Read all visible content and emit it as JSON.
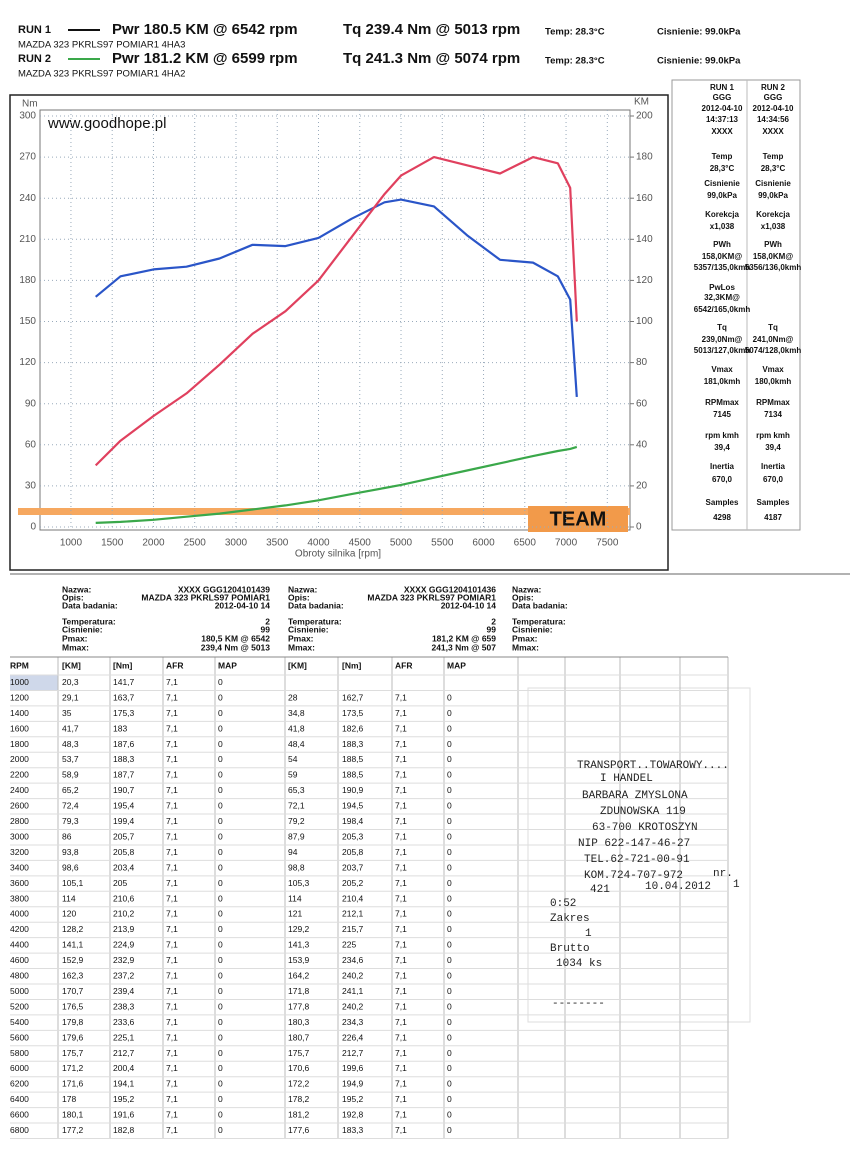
{
  "header": {
    "runs": [
      {
        "label": "RUN 1",
        "power": "Pwr 180.5 KM @ 6542 rpm",
        "torque": "Tq 239.4 Nm @ 5013 rpm",
        "temp": "Temp: 28.3°C",
        "pressure": "Cisnienie: 99.0kPa",
        "model": "MAZDA 323 PKRLS97 POMIAR1 4HA3"
      },
      {
        "label": "RUN 2",
        "power": "Pwr 181.2 KM @ 6599 rpm",
        "torque": "Tq 241.3 Nm @ 5074 rpm",
        "temp": "Temp: 28.3°C",
        "pressure": "Cisnienie: 99.0kPa",
        "model": "MAZDA 323 PKRLS97 POMIAR1 4HA2"
      }
    ]
  },
  "chart_data": {
    "type": "line",
    "ylabel": "Nm",
    "y2label": "KM",
    "xlabel": "Obroty silnika [rpm]",
    "watermark": "www.goodhope.pl",
    "logo": "TEAM",
    "x": [
      1300,
      1600,
      2000,
      2400,
      2800,
      3200,
      3600,
      4000,
      4400,
      4800,
      5000,
      5400,
      5800,
      6200,
      6600,
      6900,
      7050,
      7130
    ],
    "series": [
      {
        "color": "#2a55c8",
        "values": [
          168,
          183,
          188,
          190,
          196,
          206,
          205,
          211,
          225,
          237,
          239,
          234,
          213,
          195,
          193,
          183,
          166,
          95
        ]
      },
      {
        "color": "#e0405e",
        "axis": "y2",
        "values": [
          30,
          42,
          54,
          65,
          79,
          94,
          105,
          120,
          141,
          162,
          171,
          180,
          176,
          172,
          180,
          177,
          165,
          100
        ]
      },
      {
        "color": "#3aa84a",
        "axis": "y2",
        "values": [
          2,
          2.5,
          3.5,
          5,
          6.5,
          8.5,
          10.5,
          13,
          16,
          19,
          20.5,
          24,
          27.5,
          31,
          34.5,
          37,
          38,
          39
        ]
      }
    ],
    "xlim": [
      625,
      7775
    ],
    "xticks": [
      1000,
      1500,
      2000,
      2500,
      3000,
      3500,
      4000,
      4500,
      5000,
      5500,
      6000,
      6500,
      7000,
      7500
    ],
    "ylim": [
      0,
      300
    ],
    "yticks": [
      0,
      30,
      60,
      90,
      120,
      150,
      180,
      210,
      240,
      270,
      300
    ],
    "y2lim": [
      0,
      200
    ],
    "y2ticks": [
      0,
      20,
      40,
      60,
      80,
      100,
      120,
      140,
      160,
      180,
      200
    ],
    "grid": true
  },
  "side_panel": {
    "rows": [
      {
        "run1": "RUN 1",
        "run2": "RUN 2"
      },
      {
        "run1": "GGG",
        "run2": "GGG"
      },
      {
        "run1": "2012-04-10",
        "run2": "2012-04-10"
      },
      {
        "run1": "14:37:13",
        "run2": "14:34:56"
      },
      {
        "run1": "XXXX",
        "run2": "XXXX"
      },
      {
        "run1": "Temp",
        "run2": "Temp"
      },
      {
        "run1": "28,3°C",
        "run2": "28,3°C"
      },
      {
        "run1": "Cisnienie",
        "run2": "Cisnienie"
      },
      {
        "run1": "99,0kPa",
        "run2": "99,0kPa"
      },
      {
        "run1": "Korekcja",
        "run2": "Korekcja"
      },
      {
        "run1": "x1,038",
        "run2": "x1,038"
      },
      {
        "run1": "PWh",
        "run2": "PWh"
      },
      {
        "run1": "158,0KM@",
        "run2": "158,0KM@"
      },
      {
        "run1": "5357/135,0kmh",
        "run2": "5356/136,0kmh"
      },
      {
        "run1": "PwLos"
      },
      {
        "run1": "32,3KM@"
      },
      {
        "run1": "6542/165,0kmh"
      },
      {
        "run1": "Tq",
        "run2": "Tq"
      },
      {
        "run1": "239,0Nm@",
        "run2": "241,0Nm@"
      },
      {
        "run1": "5013/127,0kmh",
        "run2": "5074/128,0kmh"
      },
      {
        "run1": "Vmax",
        "run2": "Vmax"
      },
      {
        "run1": "181,0kmh",
        "run2": "180,0kmh"
      },
      {
        "run1": "RPMmax",
        "run2": "RPMmax"
      },
      {
        "run1": "7145",
        "run2": "7134"
      },
      {
        "run1": "rpm kmh",
        "run2": "rpm kmh"
      },
      {
        "run1": "39,4",
        "run2": "39,4"
      },
      {
        "run1": "Inertia",
        "run2": "Inertia"
      },
      {
        "run1": "670,0",
        "run2": "670,0"
      },
      {
        "run1": "Samples",
        "run2": "Samples"
      },
      {
        "run1": "4298",
        "run2": "4187"
      }
    ]
  },
  "info_blocks": [
    {
      "labels": [
        "Nazwa:",
        "Opis:",
        "Data badania:",
        "Temperatura:",
        "Cisnienie:",
        "Pmax:",
        "Mmax:"
      ],
      "values": [
        "XXXX  GGG1204101439",
        "MAZDA 323 PKRLS97 POMIAR1",
        "2012-04-10 14",
        "2",
        "99",
        "180,5 KM @ 6542",
        "239,4 Nm @ 5013"
      ]
    },
    {
      "labels": [
        "Nazwa:",
        "Opis:",
        "Data badania:",
        "Temperatura:",
        "Cisnienie:",
        "Pmax:",
        "Mmax:"
      ],
      "values": [
        "XXXX  GGG1204101436",
        "MAZDA 323 PKRLS97 POMIAR1",
        "2012-04-10 14",
        "2",
        "99",
        "181,2 KM @ 659",
        "241,3 Nm @ 507"
      ]
    },
    {
      "labels": [
        "Nazwa:",
        "Opis:",
        "Data badania:",
        "Temperatura:",
        "Cisnienie:",
        "Pmax:",
        "Mmax:"
      ]
    }
  ],
  "table": {
    "header": [
      "RPM",
      "[KM]",
      "[Nm]",
      "AFR",
      "MAP",
      "[KM]",
      "[Nm]",
      "AFR",
      "MAP"
    ],
    "rows": [
      [
        "1000",
        "20,3",
        "141,7",
        "7,1",
        "0"
      ],
      [
        "1200",
        "29,1",
        "163,7",
        "7,1",
        "0",
        "28",
        "162,7",
        "7,1",
        "0"
      ],
      [
        "1400",
        "35",
        "175,3",
        "7,1",
        "0",
        "34,8",
        "173,5",
        "7,1",
        "0"
      ],
      [
        "1600",
        "41,7",
        "183",
        "7,1",
        "0",
        "41,8",
        "182,6",
        "7,1",
        "0"
      ],
      [
        "1800",
        "48,3",
        "187,6",
        "7,1",
        "0",
        "48,4",
        "188,3",
        "7,1",
        "0"
      ],
      [
        "2000",
        "53,7",
        "188,3",
        "7,1",
        "0",
        "54",
        "188,5",
        "7,1",
        "0"
      ],
      [
        "2200",
        "58,9",
        "187,7",
        "7,1",
        "0",
        "59",
        "188,5",
        "7,1",
        "0"
      ],
      [
        "2400",
        "65,2",
        "190,7",
        "7,1",
        "0",
        "65,3",
        "190,9",
        "7,1",
        "0"
      ],
      [
        "2600",
        "72,4",
        "195,4",
        "7,1",
        "0",
        "72,1",
        "194,5",
        "7,1",
        "0"
      ],
      [
        "2800",
        "79,3",
        "199,4",
        "7,1",
        "0",
        "79,2",
        "198,4",
        "7,1",
        "0"
      ],
      [
        "3000",
        "86",
        "205,7",
        "7,1",
        "0",
        "87,9",
        "205,3",
        "7,1",
        "0"
      ],
      [
        "3200",
        "93,8",
        "205,8",
        "7,1",
        "0",
        "94",
        "205,8",
        "7,1",
        "0"
      ],
      [
        "3400",
        "98,6",
        "203,4",
        "7,1",
        "0",
        "98,8",
        "203,7",
        "7,1",
        "0"
      ],
      [
        "3600",
        "105,1",
        "205",
        "7,1",
        "0",
        "105,3",
        "205,2",
        "7,1",
        "0"
      ],
      [
        "3800",
        "114",
        "210,6",
        "7,1",
        "0",
        "114",
        "210,4",
        "7,1",
        "0"
      ],
      [
        "4000",
        "120",
        "210,2",
        "7,1",
        "0",
        "121",
        "212,1",
        "7,1",
        "0"
      ],
      [
        "4200",
        "128,2",
        "213,9",
        "7,1",
        "0",
        "129,2",
        "215,7",
        "7,1",
        "0"
      ],
      [
        "4400",
        "141,1",
        "224,9",
        "7,1",
        "0",
        "141,3",
        "225",
        "7,1",
        "0"
      ],
      [
        "4600",
        "152,9",
        "232,9",
        "7,1",
        "0",
        "153,9",
        "234,6",
        "7,1",
        "0"
      ],
      [
        "4800",
        "162,3",
        "237,2",
        "7,1",
        "0",
        "164,2",
        "240,2",
        "7,1",
        "0"
      ],
      [
        "5000",
        "170,7",
        "239,4",
        "7,1",
        "0",
        "171,8",
        "241,1",
        "7,1",
        "0"
      ],
      [
        "5200",
        "176,5",
        "238,3",
        "7,1",
        "0",
        "177,8",
        "240,2",
        "7,1",
        "0"
      ],
      [
        "5400",
        "179,8",
        "233,6",
        "7,1",
        "0",
        "180,3",
        "234,3",
        "7,1",
        "0"
      ],
      [
        "5600",
        "179,6",
        "225,1",
        "7,1",
        "0",
        "180,7",
        "226,4",
        "7,1",
        "0"
      ],
      [
        "5800",
        "175,7",
        "212,7",
        "7,1",
        "0",
        "175,7",
        "212,7",
        "7,1",
        "0"
      ],
      [
        "6000",
        "171,2",
        "200,4",
        "7,1",
        "0",
        "170,6",
        "199,6",
        "7,1",
        "0"
      ],
      [
        "6200",
        "171,6",
        "194,1",
        "7,1",
        "0",
        "172,2",
        "194,9",
        "7,1",
        "0"
      ],
      [
        "6400",
        "178",
        "195,2",
        "7,1",
        "0",
        "178,2",
        "195,2",
        "7,1",
        "0"
      ],
      [
        "6600",
        "180,1",
        "191,6",
        "7,1",
        "0",
        "181,2",
        "192,8",
        "7,1",
        "0"
      ],
      [
        "6800",
        "177,2",
        "182,8",
        "7,1",
        "0",
        "177,6",
        "183,3",
        "7,1",
        "0"
      ]
    ]
  },
  "receipt": {
    "lines": [
      "TRANSPORT..TOWAROWY....",
      "I HANDEL",
      "BARBARA ZMYSLONA",
      "ZDUNOWSKA 119",
      "63-700 KROTOSZYN",
      "NIP 622-147-46-27",
      "TEL.62-721-00-91",
      "KOM.724-707-972",
      "nr.",
      "421",
      "10.04.2012",
      "1",
      "0:52",
      "Zakres",
      "1",
      "Brutto",
      "1034 ks",
      "--------"
    ]
  }
}
